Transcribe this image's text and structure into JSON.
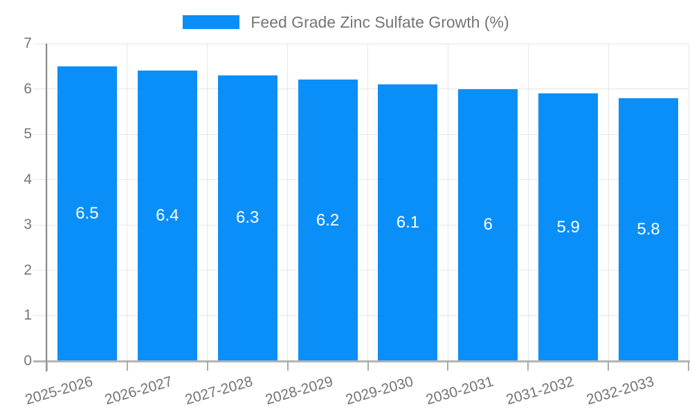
{
  "legend": {
    "label": "Feed Grade Zinc Sulfate Growth (%)"
  },
  "colors": {
    "background": "#ffffff",
    "bar": "#0a8ff9",
    "value_text": "#ffffff",
    "axis_text": "#757575",
    "gridline": "#e6e6e6",
    "axis_line": "#898989",
    "baseline": "#b3b3b3",
    "tick": "#ababab"
  },
  "chart_data": {
    "type": "bar",
    "title": "",
    "legend_position": "top",
    "categories": [
      "2025-2026",
      "2026-2027",
      "2027-2028",
      "2028-2029",
      "2029-2030",
      "2030-2031",
      "2031-2032",
      "2032-2033"
    ],
    "series": [
      {
        "name": "Feed Grade Zinc Sulfate Growth (%)",
        "values": [
          6.5,
          6.4,
          6.3,
          6.2,
          6.1,
          6,
          5.9,
          5.8
        ]
      }
    ],
    "bar_value_labels": [
      "6.5",
      "6.4",
      "6.3",
      "6.2",
      "6.1",
      "6",
      "5.9",
      "5.8"
    ],
    "xlabel": "",
    "ylabel": "",
    "ylim": [
      0,
      7
    ],
    "yticks": [
      0,
      1,
      2,
      3,
      4,
      5,
      6,
      7
    ],
    "grid": true,
    "x_tick_rotation_deg": -16
  }
}
